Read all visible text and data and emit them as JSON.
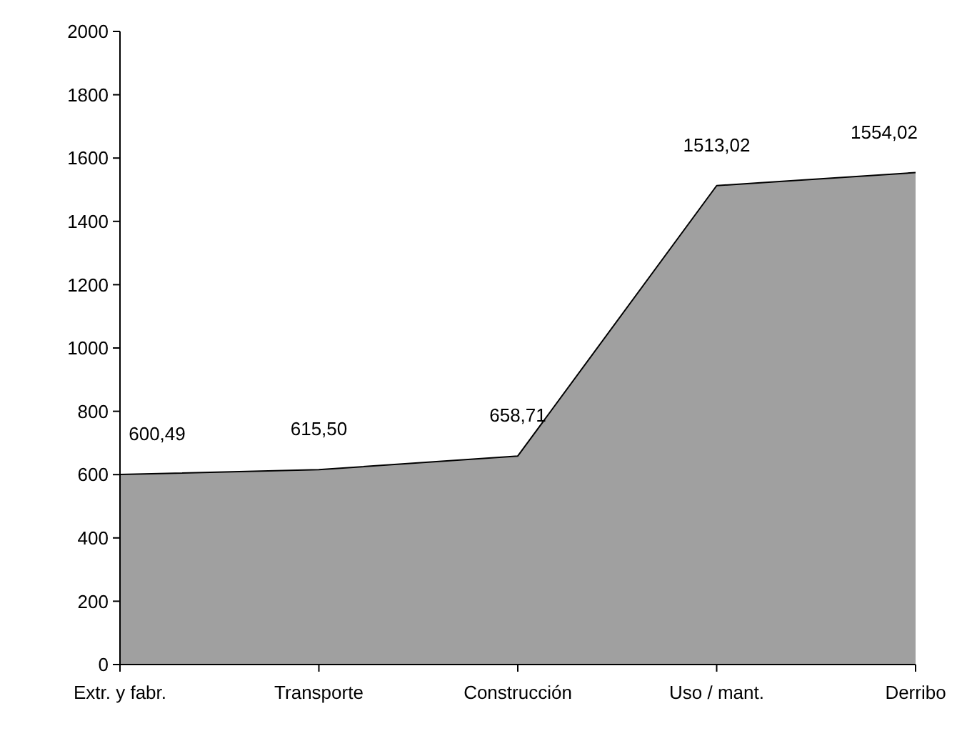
{
  "chart_data": {
    "type": "area",
    "categories": [
      "Extr. y fabr.",
      "Transporte",
      "Construcción",
      "Uso / mant.",
      "Derribo"
    ],
    "series": [
      {
        "color": "#a0a0a0",
        "values": [
          600.49,
          615.5,
          658.71,
          1513.02,
          1554.02
        ],
        "value_labels": [
          "600,49",
          "615,50",
          "658,71",
          "1513,02",
          "1554,02"
        ]
      }
    ],
    "ylim": [
      0,
      2000
    ],
    "yticks": [
      0,
      200,
      400,
      600,
      800,
      1000,
      1200,
      1400,
      1600,
      1800,
      2000
    ]
  }
}
